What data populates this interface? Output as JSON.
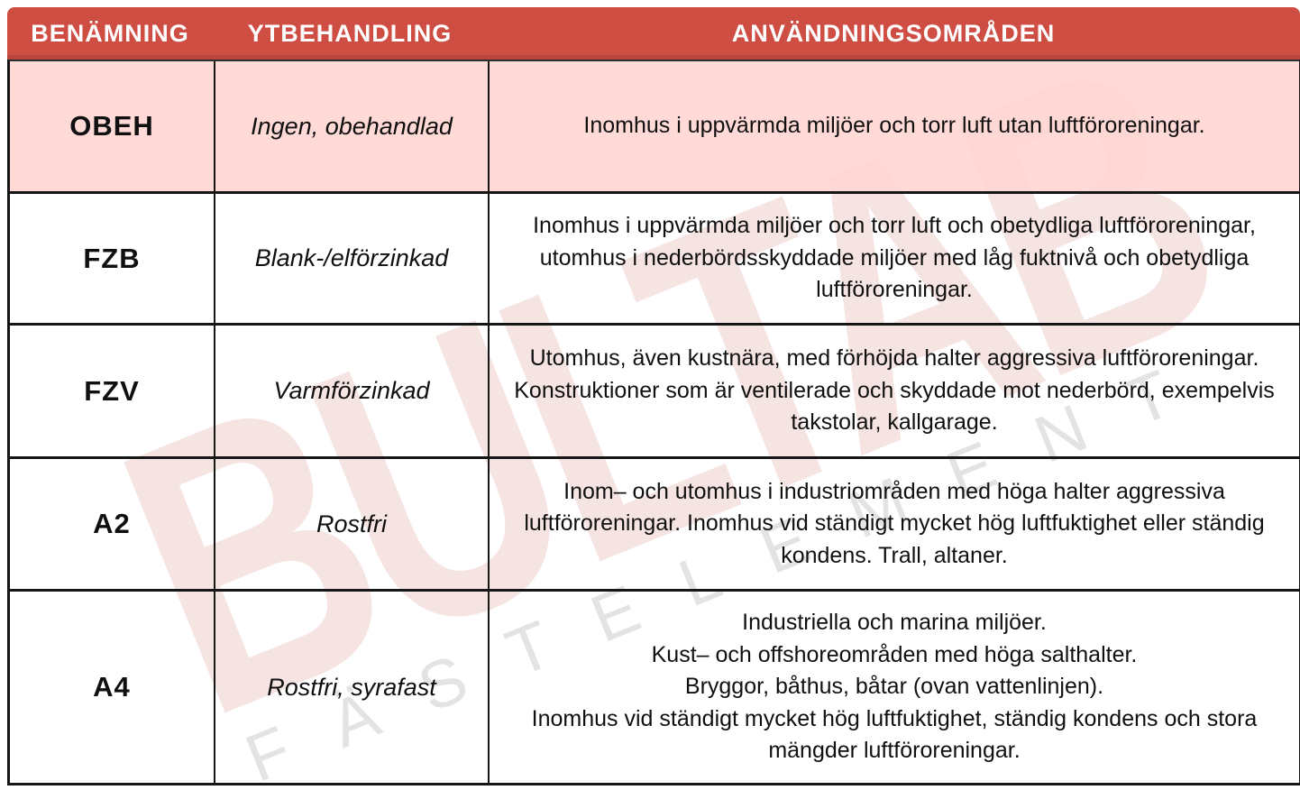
{
  "watermark": {
    "primary": "BULTAB",
    "secondary": "FÄSTELEMENT"
  },
  "colors": {
    "header_bg": "#cf4e44",
    "header_text": "#ffffff",
    "highlight_row_bg": "#ffd6d3",
    "border": "#161616",
    "watermark_red": "#c95c55",
    "watermark_gray": "#9b9494"
  },
  "table": {
    "headers": [
      {
        "label": "BENÄMNING"
      },
      {
        "label": "YTBEHANDLING"
      },
      {
        "label": "ANVÄNDNINGSOMRÅDEN"
      }
    ],
    "rows": [
      {
        "code": "OBEH",
        "treatment": "Ingen, obehandlad",
        "usage": "Inomhus i uppvärmda miljöer och torr luft utan luftföroreningar.",
        "highlighted": true
      },
      {
        "code": "FZB",
        "treatment": "Blank-/elförzinkad",
        "usage": "Inomhus i uppvärmda miljöer och torr luft och obetydliga luftföroreningar, utomhus i nederbördsskyddade miljöer med låg fuktnivå och obetydliga luftföroreningar.",
        "highlighted": false
      },
      {
        "code": "FZV",
        "treatment": "Varmförzinkad",
        "usage": "Utomhus, även kustnära, med förhöjda halter aggressiva luftföroreningar. Konstruktioner som är ventilerade och skyddade mot nederbörd, exempelvis takstolar, kallgarage.",
        "highlighted": false
      },
      {
        "code": "A2",
        "treatment": "Rostfri",
        "usage": "Inom– och utomhus i industriområden med höga halter aggressiva luftföroreningar. Inomhus vid ständigt mycket hög luftfuktighet eller ständig kondens. Trall, altaner.",
        "highlighted": false
      },
      {
        "code": "A4",
        "treatment": "Rostfri, syrafast",
        "usage": "Industriella och marina miljöer.\nKust– och offshoreområden med höga salthalter.\nBryggor, båthus, båtar (ovan vattenlinjen).\nInomhus vid ständigt mycket hög luftfuktighet, ständig kondens och stora mängder luftföroreningar.",
        "highlighted": false
      }
    ]
  }
}
